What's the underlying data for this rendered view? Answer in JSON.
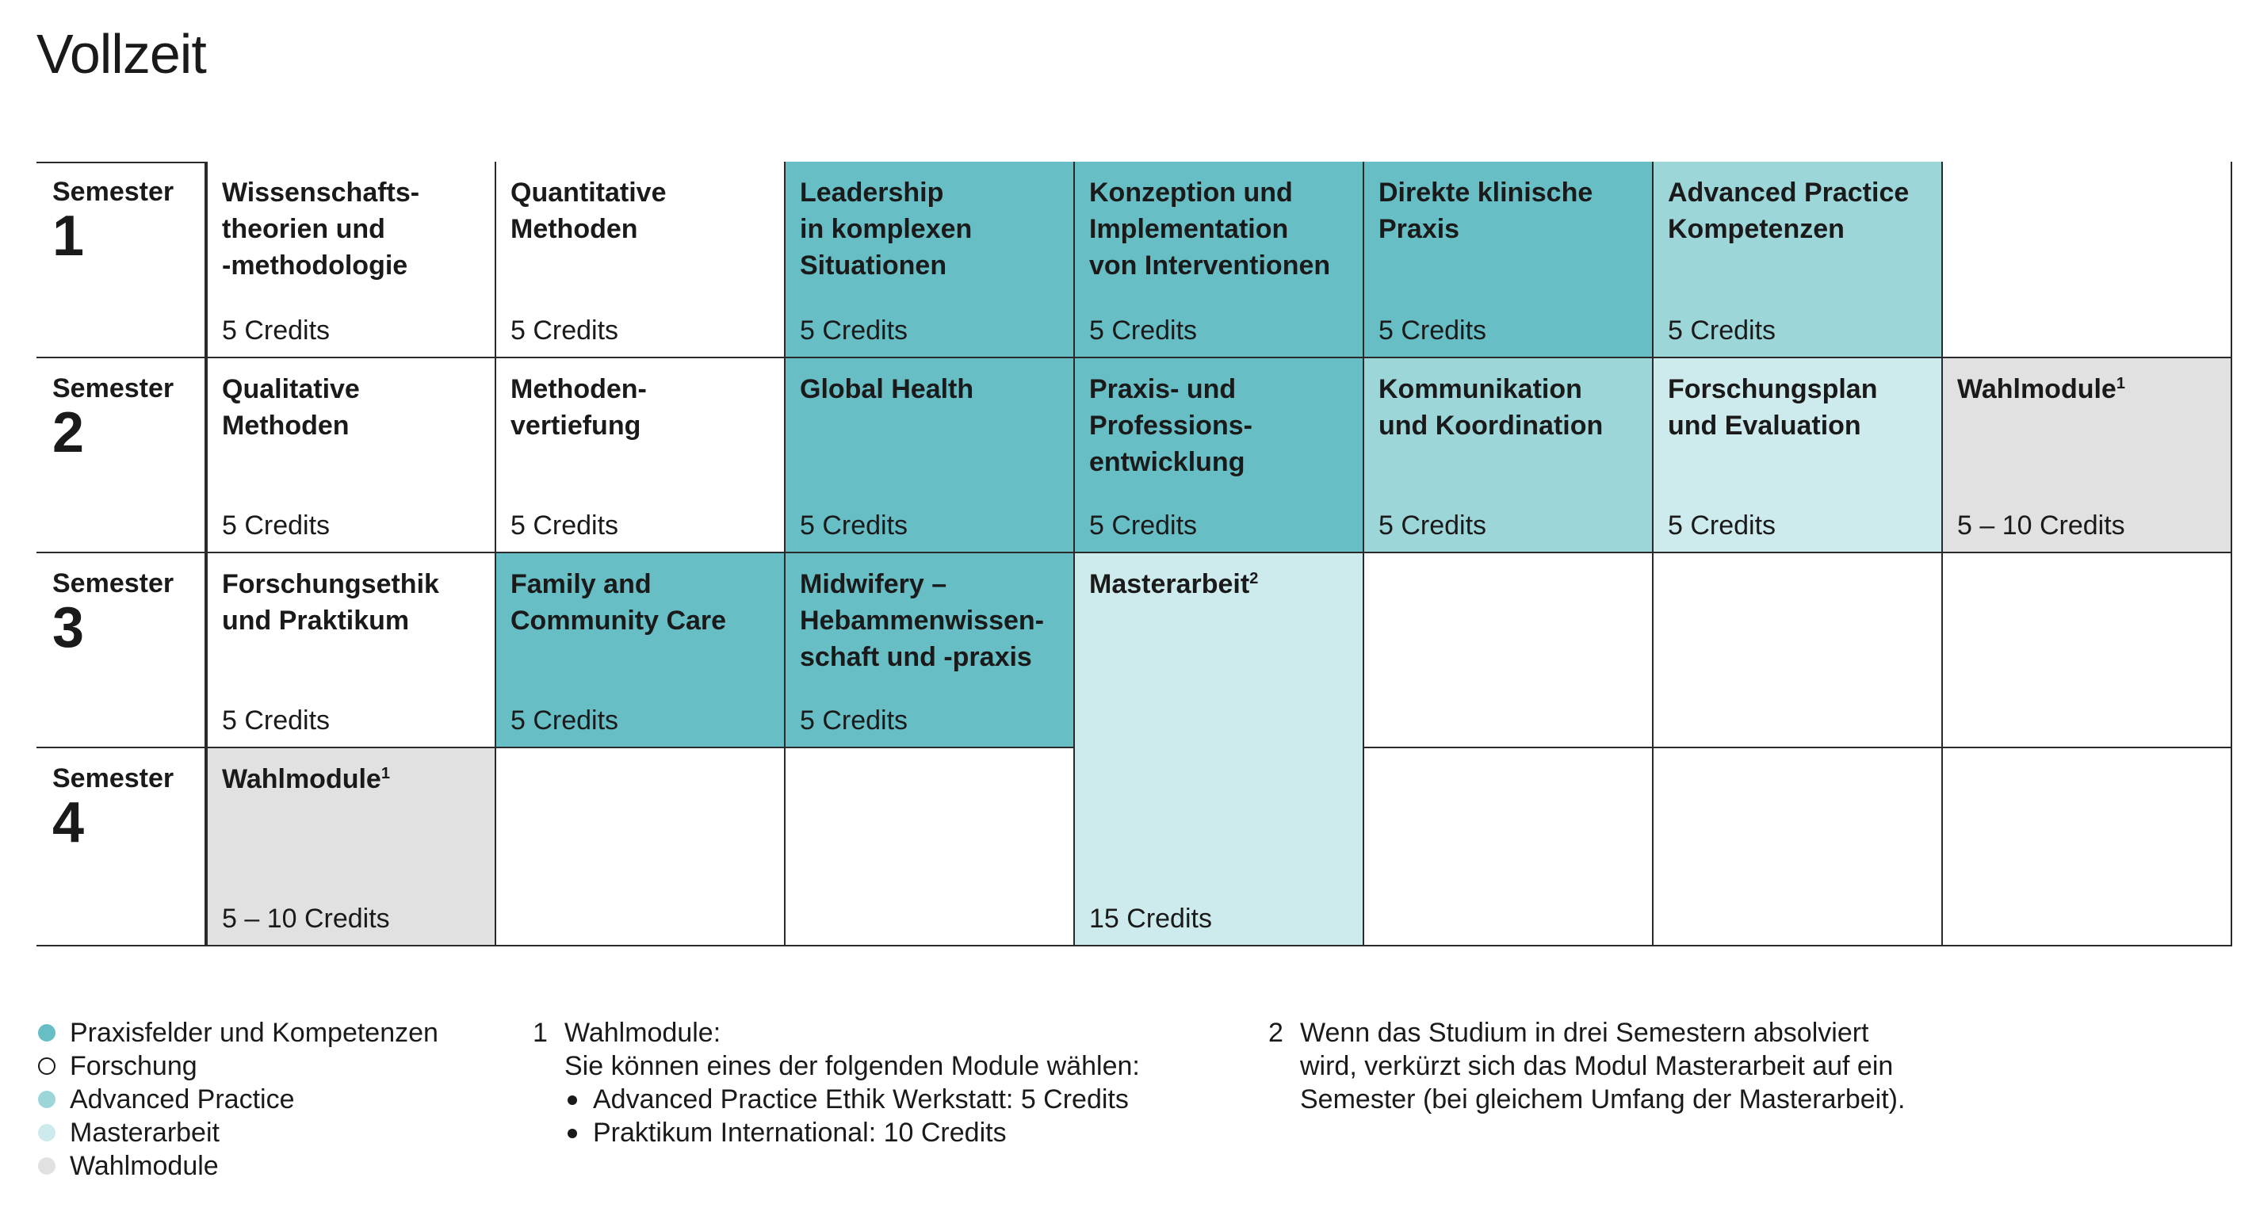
{
  "page": {
    "title": "Vollzeit"
  },
  "colors": {
    "praxisfelder": "#67bec5",
    "advanced_practice": "#9cd6d9",
    "masterarbeit": "#cdeaec",
    "wahlmodule": "#e1e1e1",
    "forschung": "#ffffff"
  },
  "semesters": [
    {
      "label": "Semester",
      "number": "1"
    },
    {
      "label": "Semester",
      "number": "2"
    },
    {
      "label": "Semester",
      "number": "3"
    },
    {
      "label": "Semester",
      "number": "4"
    }
  ],
  "modules": {
    "s1": [
      {
        "title": "Wissenschafts-\ntheorien und\n-methodologie",
        "credits": "5 Credits",
        "category": "forschung"
      },
      {
        "title": "Quantitative\nMethoden",
        "credits": "5 Credits",
        "category": "forschung"
      },
      {
        "title": "Leadership\nin komplexen\nSituationen",
        "credits": "5 Credits",
        "category": "praxisfelder"
      },
      {
        "title": "Konzeption und\nImplementation\nvon Interventionen",
        "credits": "5 Credits",
        "category": "praxisfelder"
      },
      {
        "title": "Direkte klinische\nPraxis",
        "credits": "5 Credits",
        "category": "praxisfelder"
      },
      {
        "title": "Advanced Practice\nKompetenzen",
        "credits": "5 Credits",
        "category": "advanced_practice"
      }
    ],
    "s2": [
      {
        "title": "Qualitative\nMethoden",
        "credits": "5 Credits",
        "category": "forschung"
      },
      {
        "title": "Methoden-\nvertiefung",
        "credits": "5 Credits",
        "category": "forschung"
      },
      {
        "title": "Global Health",
        "credits": "5 Credits",
        "category": "praxisfelder"
      },
      {
        "title": "Praxis- und\nProfessions-\nentwicklung",
        "credits": "5 Credits",
        "category": "praxisfelder"
      },
      {
        "title": "Kommunikation\nund Koordination",
        "credits": "5 Credits",
        "category": "advanced_practice"
      },
      {
        "title": "Forschungsplan\nund Evaluation",
        "credits": "5 Credits",
        "category": "masterarbeit"
      },
      {
        "title": "Wahlmodule",
        "sup": "1",
        "credits": "5 – 10 Credits",
        "category": "wahlmodule"
      }
    ],
    "s3": [
      {
        "title": "Forschungsethik\nund Praktikum",
        "credits": "5 Credits",
        "category": "forschung"
      },
      {
        "title": "Family and\nCommunity Care",
        "credits": "5 Credits",
        "category": "praxisfelder"
      },
      {
        "title": "Midwifery –\nHebammenwissen-\nschaft und -praxis",
        "credits": "5 Credits",
        "category": "praxisfelder"
      }
    ],
    "masterarbeit": {
      "title": "Masterarbeit",
      "sup": "2",
      "credits": "15 Credits",
      "category": "masterarbeit"
    },
    "s4": [
      {
        "title": "Wahlmodule",
        "sup": "1",
        "credits": "5 – 10 Credits",
        "category": "wahlmodule"
      }
    ]
  },
  "legend": [
    {
      "label": "Praxisfelder und Kompetenzen",
      "color": "#67bec5",
      "outline": false
    },
    {
      "label": "Forschung",
      "color": "#ffffff",
      "outline": true
    },
    {
      "label": "Advanced Practice",
      "color": "#9cd6d9",
      "outline": false
    },
    {
      "label": "Masterarbeit",
      "color": "#cdeaec",
      "outline": false
    },
    {
      "label": "Wahlmodule",
      "color": "#e1e1e1",
      "outline": false
    }
  ],
  "footnotes": {
    "fn1": {
      "number": "1",
      "line1": "Wahlmodule:",
      "line2": "Sie können eines der folgenden Module wählen:",
      "bullets": [
        "Advanced Practice Ethik Werkstatt: 5 Credits",
        "Praktikum International: 10 Credits"
      ]
    },
    "fn2": {
      "number": "2",
      "line1": "Wenn das Studium in drei Semestern absolviert",
      "line2": "wird, verkürzt sich das Modul Masterarbeit auf ein",
      "line3": "Semester (bei gleichem Umfang der Masterarbeit)."
    }
  }
}
